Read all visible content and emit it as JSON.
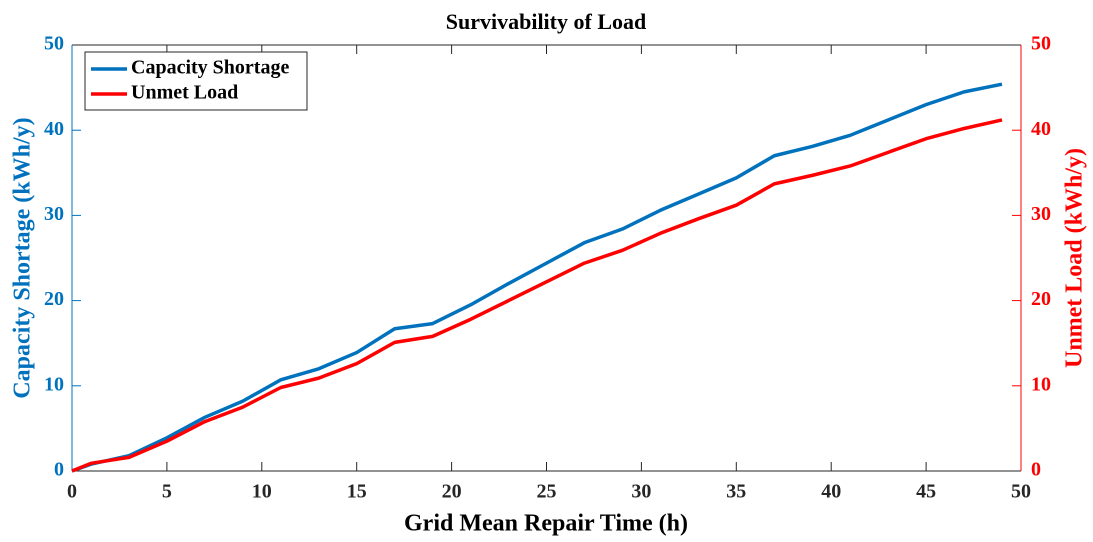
{
  "chart_data": {
    "type": "line",
    "title": "Survivability of Load",
    "x_label": "Grid Mean Repair Time (h)",
    "y_label": "Capacity Shortage (kWh/y)",
    "y2_label": "Unmet Load (kWh/y)",
    "x": [
      0,
      1,
      3,
      5,
      7,
      9,
      11,
      13,
      15,
      17,
      19,
      21,
      23,
      25,
      27,
      29,
      31,
      33,
      35,
      37,
      39,
      41,
      43,
      45,
      47,
      49
    ],
    "series": [
      {
        "name": "Capacity Shortage",
        "color": "#0072bd",
        "values": [
          0,
          0.8,
          1.8,
          3.9,
          6.3,
          8.2,
          10.7,
          12.0,
          13.9,
          16.7,
          17.3,
          19.5,
          22.0,
          24.4,
          26.8,
          28.4,
          30.6,
          32.5,
          34.4,
          37.0,
          38.1,
          39.4,
          41.2,
          43.0,
          44.5,
          45.4
        ]
      },
      {
        "name": "Unmet Load",
        "color": "#ff0000",
        "axis": "y2",
        "values": [
          0,
          0.9,
          1.6,
          3.5,
          5.8,
          7.5,
          9.8,
          10.9,
          12.6,
          15.1,
          15.8,
          17.8,
          20.0,
          22.2,
          24.4,
          25.9,
          27.9,
          29.6,
          31.2,
          33.7,
          34.7,
          35.8,
          37.4,
          39.0,
          40.2,
          41.2
        ]
      }
    ],
    "xlim": [
      0,
      50
    ],
    "xticks": [
      0,
      5,
      10,
      15,
      20,
      25,
      30,
      35,
      40,
      45,
      50
    ],
    "ylim": [
      0,
      50
    ],
    "yticks": [
      0,
      10,
      20,
      30,
      40,
      50
    ],
    "y2lim": [
      0,
      50
    ],
    "y2ticks": [
      0,
      10,
      20,
      30,
      40,
      50
    ],
    "legend": "upper-left"
  }
}
